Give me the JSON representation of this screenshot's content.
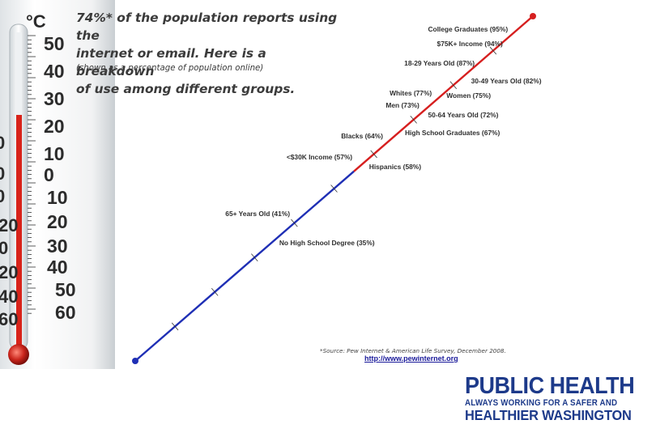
{
  "headline": {
    "line1": "74%* of the population reports using the",
    "line2": "internet or email. Here is a breakdown",
    "line3": "of use among different groups.",
    "subnote": "(shown as a percentage of population online)"
  },
  "thermometer": {
    "unit": "°C",
    "upper_scale": [
      "50",
      "40",
      "30",
      "20",
      "10",
      "0"
    ],
    "lower_scale": [
      "10",
      "20",
      "30",
      "40",
      "50",
      "60"
    ],
    "left_edge_labels": [
      "0",
      "0",
      "0",
      "20",
      "0",
      "20",
      "40",
      "60"
    ]
  },
  "scale": {
    "overall_percent": 74,
    "low_color": "#1f2fb5",
    "high_color": "#d61f1f",
    "groups": [
      {
        "label": "College Graduates (95%)",
        "value": 95
      },
      {
        "label": "$75K+ Income (94%)",
        "value": 94
      },
      {
        "label": "18-29 Years Old (87%)",
        "value": 87
      },
      {
        "label": "30-49 Years Old (82%)",
        "value": 82
      },
      {
        "label": "Whites (77%)",
        "value": 77
      },
      {
        "label": "Women (75%)",
        "value": 75
      },
      {
        "label": "Men (73%)",
        "value": 73
      },
      {
        "label": "50-64 Years Old (72%)",
        "value": 72
      },
      {
        "label": "High School Graduates (67%)",
        "value": 67
      },
      {
        "label": "Blacks (64%)",
        "value": 64
      },
      {
        "label": "Hispanics (58%)",
        "value": 58
      },
      {
        "label": "<$30K Income (57%)",
        "value": 57
      },
      {
        "label": "65+ Years Old (41%)",
        "value": 41
      },
      {
        "label": "No High School Degree (35%)",
        "value": 35
      }
    ]
  },
  "source": {
    "text": "*Source: Pew Internet & American Life Survey, December 2008.",
    "url": "http://www.pewinternet.org"
  },
  "logo": {
    "line1": "PUBLIC HEALTH",
    "line2": "ALWAYS WORKING FOR A SAFER AND",
    "line3": "HEALTHIER WASHINGTON",
    "color": "#1d3a8a"
  }
}
